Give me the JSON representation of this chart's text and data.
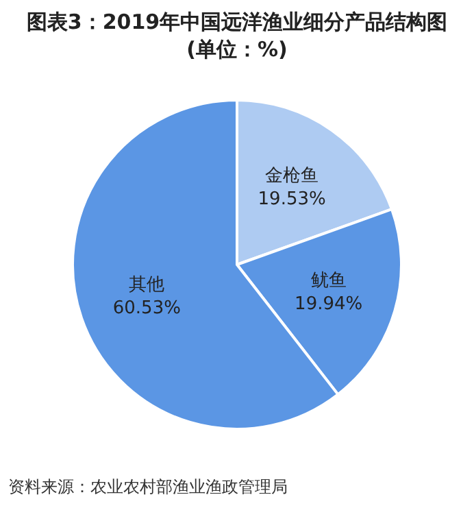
{
  "chart_data": {
    "type": "pie",
    "title": "图表3：2019年中国远洋渔业细分产品结构图(单位：%)",
    "categories": [
      "金枪鱼",
      "鱿鱼",
      "其他"
    ],
    "values": [
      19.53,
      19.94,
      60.53
    ],
    "colors": [
      "#aecbf2",
      "#5b96e4",
      "#5b96e4"
    ],
    "value_labels": [
      "19.53%",
      "19.94%",
      "60.53%"
    ],
    "annotations": [
      "资料来源：农业农村部渔业渔政管理局"
    ]
  }
}
